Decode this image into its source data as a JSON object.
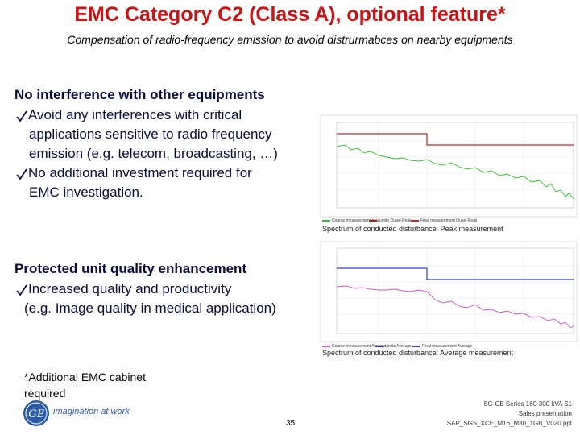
{
  "header": {
    "title": "EMC Category C2 (Class A), optional feature*",
    "subtitle": "Compensation of radio-frequency emission to avoid distrurmabces on nearby equipments"
  },
  "sections": [
    {
      "heading": "No interference with other equipments",
      "bullets": [
        [
          "Avoid any interferences with critical",
          "applications sensitive to radio frequency",
          "emission (e.g. telecom, broadcasting, …)"
        ],
        [
          "No additional investment required for",
          "EMC investigation."
        ]
      ]
    },
    {
      "heading": "Protected unit quality enhancement",
      "bullets": [
        [
          "Increased quality and productivity",
          "(e.g. Image quality in medical application)"
        ]
      ]
    }
  ],
  "figures": [
    {
      "caption": "Spectrum of conducted disturbance: Peak measurement",
      "legend": [
        "Coarse measurement peak",
        "Limits Quasi-Peak",
        "Final measurement Quasi-Peak"
      ]
    },
    {
      "caption": "Spectrum of conducted disturbance: Average measurement",
      "legend": [
        "Coarse measurement Average",
        "Limits Average",
        "Final measurement Average"
      ]
    }
  ],
  "footnote": [
    "*Additional EMC cabinet",
    "required"
  ],
  "footer": {
    "logo_text": "imagination at work",
    "page": "35",
    "info": [
      "SG-CE Series 160-300 kVA S1",
      "Sales presentation",
      "SAP_SGS_XCE_M16_M30_1GB_V020.ppt"
    ]
  }
}
